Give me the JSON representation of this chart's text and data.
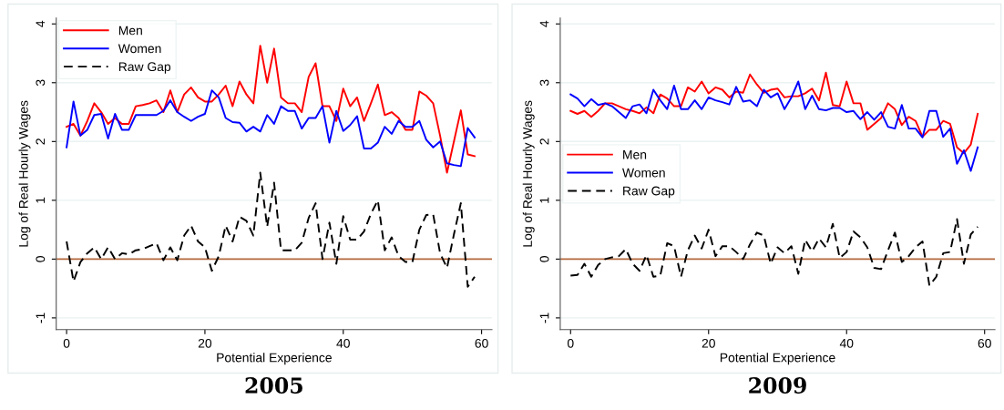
{
  "chart_data": [
    {
      "type": "line",
      "title": "2005",
      "xlabel": "Potential Experience",
      "ylabel": "Log of Real Hourly Wages",
      "x": [
        0,
        1,
        2,
        3,
        4,
        5,
        6,
        7,
        8,
        9,
        10,
        11,
        12,
        13,
        14,
        15,
        16,
        17,
        18,
        19,
        20,
        21,
        22,
        23,
        24,
        25,
        26,
        27,
        28,
        29,
        30,
        31,
        32,
        33,
        34,
        35,
        36,
        37,
        38,
        39,
        40,
        41,
        42,
        43,
        44,
        45,
        46,
        47,
        48,
        49,
        50,
        51,
        52,
        53,
        54,
        55,
        56,
        57,
        58,
        59
      ],
      "series": [
        {
          "name": "Men",
          "color": "#ff0000",
          "line_style": "solid",
          "values": [
            2.25,
            2.3,
            2.1,
            2.35,
            2.65,
            2.5,
            2.3,
            2.4,
            2.3,
            2.3,
            2.6,
            2.62,
            2.65,
            2.7,
            2.5,
            2.87,
            2.5,
            2.8,
            2.92,
            2.75,
            2.68,
            2.68,
            2.8,
            2.95,
            2.6,
            3.02,
            2.8,
            2.65,
            3.63,
            3.0,
            3.58,
            2.75,
            2.65,
            2.65,
            2.5,
            3.1,
            3.33,
            2.6,
            2.6,
            2.35,
            2.9,
            2.6,
            2.75,
            2.35,
            2.65,
            2.97,
            2.45,
            2.5,
            2.4,
            2.2,
            2.2,
            2.85,
            2.78,
            2.65,
            2.1,
            1.47,
            2.0,
            2.53,
            1.78,
            1.75
          ]
        },
        {
          "name": "Women",
          "color": "#0000ff",
          "line_style": "solid",
          "values": [
            1.9,
            2.68,
            2.1,
            2.2,
            2.45,
            2.47,
            2.05,
            2.47,
            2.2,
            2.2,
            2.45,
            2.45,
            2.45,
            2.45,
            2.52,
            2.7,
            2.5,
            2.42,
            2.35,
            2.42,
            2.47,
            2.87,
            2.75,
            2.4,
            2.33,
            2.32,
            2.17,
            2.25,
            2.17,
            2.45,
            2.3,
            2.6,
            2.52,
            2.52,
            2.22,
            2.4,
            2.4,
            2.6,
            1.98,
            2.52,
            2.18,
            2.28,
            2.43,
            1.88,
            1.88,
            1.98,
            2.25,
            2.13,
            2.35,
            2.25,
            2.25,
            2.35,
            2.03,
            1.9,
            2.0,
            1.63,
            1.6,
            1.58,
            2.23,
            2.07
          ]
        },
        {
          "name": "Raw Gap",
          "color": "#000000",
          "line_style": "dashed",
          "values": [
            0.3,
            -0.38,
            -0.05,
            0.1,
            0.2,
            0.0,
            0.2,
            0.0,
            0.1,
            0.08,
            0.15,
            0.17,
            0.22,
            0.27,
            -0.02,
            0.2,
            -0.02,
            0.4,
            0.57,
            0.3,
            0.2,
            -0.2,
            0.05,
            0.57,
            0.3,
            0.72,
            0.65,
            0.4,
            1.47,
            0.55,
            1.3,
            0.15,
            0.15,
            0.15,
            0.28,
            0.7,
            0.95,
            0.0,
            0.62,
            -0.08,
            0.73,
            0.33,
            0.33,
            0.47,
            0.77,
            1.0,
            0.15,
            0.37,
            0.05,
            -0.05,
            -0.05,
            0.5,
            0.75,
            0.76,
            0.1,
            -0.15,
            0.42,
            0.95,
            -0.47,
            -0.3
          ]
        }
      ],
      "xlim": [
        -1.5,
        61.5
      ],
      "xticks": [
        0,
        20,
        40,
        60
      ],
      "ylim": [
        -1.2,
        4.1
      ],
      "yticks": [
        {
          "value": -1,
          "label": "-1"
        },
        0,
        1,
        2,
        3,
        4
      ],
      "grid": "y",
      "legend": "top left",
      "marker": "none",
      "ref_lines": [
        {
          "axis": "y",
          "value": 0,
          "color": "#b5693c"
        }
      ]
    },
    {
      "type": "line",
      "title": "2009",
      "xlabel": "Potential Experience",
      "ylabel": "Log of Real Hourly Wages",
      "x": [
        0,
        1,
        2,
        3,
        4,
        5,
        6,
        7,
        8,
        9,
        10,
        11,
        12,
        13,
        14,
        15,
        16,
        17,
        18,
        19,
        20,
        21,
        22,
        23,
        24,
        25,
        26,
        27,
        28,
        29,
        30,
        31,
        32,
        33,
        34,
        35,
        36,
        37,
        38,
        39,
        40,
        41,
        42,
        43,
        44,
        45,
        46,
        47,
        48,
        49,
        50,
        51,
        52,
        53,
        54,
        55,
        56,
        57,
        58,
        59
      ],
      "series": [
        {
          "name": "Men",
          "color": "#ff0000",
          "line_style": "solid",
          "values": [
            2.52,
            2.47,
            2.52,
            2.42,
            2.52,
            2.65,
            2.65,
            2.6,
            2.55,
            2.52,
            2.48,
            2.58,
            2.48,
            2.8,
            2.73,
            2.6,
            2.6,
            2.92,
            2.85,
            3.02,
            2.82,
            2.92,
            2.88,
            2.75,
            2.85,
            2.83,
            3.14,
            2.97,
            2.83,
            2.88,
            2.9,
            2.75,
            2.77,
            2.77,
            2.82,
            2.9,
            2.7,
            3.17,
            2.62,
            2.6,
            3.02,
            2.65,
            2.65,
            2.2,
            2.3,
            2.4,
            2.65,
            2.55,
            2.28,
            2.42,
            2.35,
            2.08,
            2.2,
            2.2,
            2.35,
            2.3,
            1.9,
            1.8,
            1.95,
            2.47
          ]
        },
        {
          "name": "Women",
          "color": "#0000ff",
          "line_style": "solid",
          "values": [
            2.8,
            2.73,
            2.6,
            2.72,
            2.62,
            2.65,
            2.6,
            2.5,
            2.4,
            2.6,
            2.63,
            2.48,
            2.88,
            2.7,
            2.55,
            2.95,
            2.55,
            2.55,
            2.7,
            2.55,
            2.75,
            2.7,
            2.67,
            2.63,
            2.93,
            2.68,
            2.7,
            2.6,
            2.88,
            2.75,
            2.82,
            2.55,
            2.75,
            3.02,
            2.55,
            2.78,
            2.55,
            2.53,
            2.57,
            2.57,
            2.5,
            2.52,
            2.38,
            2.5,
            2.37,
            2.5,
            2.25,
            2.22,
            2.62,
            2.22,
            2.22,
            2.07,
            2.52,
            2.52,
            2.08,
            2.22,
            1.62,
            1.85,
            1.5,
            1.9
          ]
        },
        {
          "name": "Raw Gap",
          "color": "#000000",
          "line_style": "dashed",
          "values": [
            -0.28,
            -0.27,
            -0.08,
            -0.3,
            -0.1,
            0.0,
            0.03,
            0.05,
            0.17,
            -0.08,
            -0.2,
            0.07,
            -0.3,
            -0.28,
            0.27,
            0.22,
            -0.3,
            0.15,
            0.4,
            0.18,
            0.5,
            0.05,
            0.22,
            0.22,
            0.12,
            0.0,
            0.25,
            0.45,
            0.4,
            -0.08,
            0.2,
            0.1,
            0.22,
            -0.25,
            0.33,
            0.13,
            0.35,
            0.2,
            0.6,
            0.02,
            0.12,
            0.47,
            0.37,
            0.2,
            -0.15,
            -0.17,
            0.15,
            0.45,
            -0.05,
            0.05,
            0.2,
            0.3,
            -0.45,
            -0.3,
            0.1,
            0.12,
            0.68,
            -0.08,
            0.42,
            0.55
          ]
        }
      ],
      "xlim": [
        -1.5,
        61.5
      ],
      "xticks": [
        0,
        20,
        40,
        60
      ],
      "ylim": [
        -1.2,
        4.1
      ],
      "yticks": [
        {
          "value": -1,
          "label": "-1"
        },
        0,
        1,
        2,
        3,
        4
      ],
      "grid": "y",
      "legend": "left",
      "marker": "none",
      "ref_lines": [
        {
          "axis": "y",
          "value": 0,
          "color": "#b5693c"
        }
      ]
    }
  ]
}
